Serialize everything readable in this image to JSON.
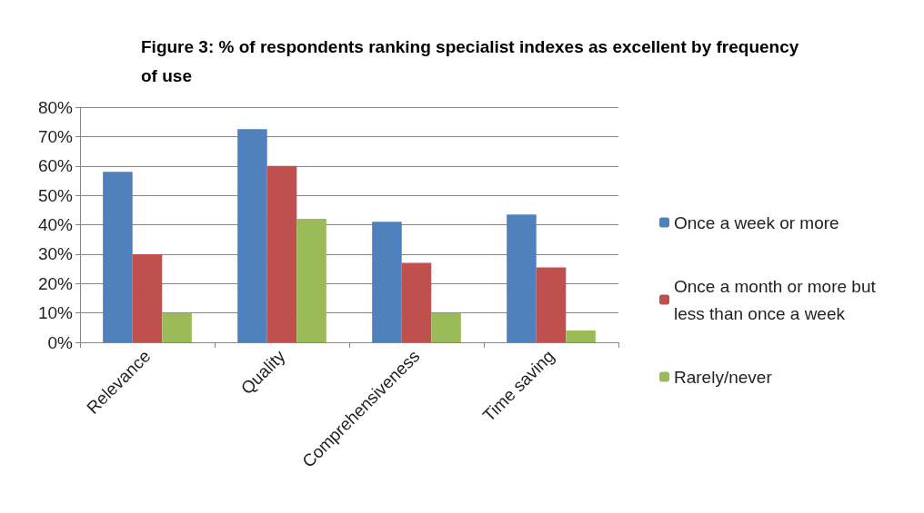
{
  "chart_data": {
    "type": "bar",
    "title": "Figure 3: % of respondents ranking specialist indexes as excellent by frequency of use",
    "categories": [
      "Relevance",
      "Quality",
      "Comprehensiveness",
      "Time saving"
    ],
    "series": [
      {
        "name": "Once a week or more",
        "color": "#4f81bd",
        "values": [
          58,
          72.5,
          41,
          43.5
        ]
      },
      {
        "name": "Once a month or more but less than once a week",
        "color": "#c0504d",
        "values": [
          30,
          60,
          27,
          25.5
        ]
      },
      {
        "name": "Rarely/never",
        "color": "#9bbb59",
        "values": [
          10,
          42,
          10,
          4
        ]
      }
    ],
    "ylim": [
      0,
      80
    ],
    "yticks": [
      {
        "value": 0,
        "label": "0%"
      },
      {
        "value": 10,
        "label": "10%"
      },
      {
        "value": 20,
        "label": "20%"
      },
      {
        "value": 30,
        "label": "30%"
      },
      {
        "value": 40,
        "label": "40%"
      },
      {
        "value": 50,
        "label": "50%"
      },
      {
        "value": 60,
        "label": "60%"
      },
      {
        "value": 70,
        "label": "70%"
      },
      {
        "value": 80,
        "label": "80%"
      }
    ],
    "grid": "y",
    "legend": "right"
  }
}
